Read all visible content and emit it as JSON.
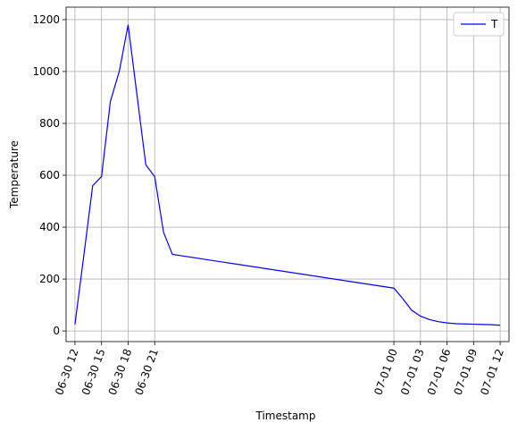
{
  "chart_data": {
    "type": "line",
    "x_label": "Timestamp",
    "y_label": "Temperature",
    "x": [
      "06-30 12",
      "06-30 13",
      "06-30 14",
      "06-30 15",
      "06-30 16",
      "06-30 17",
      "06-30 18",
      "06-30 19",
      "06-30 20",
      "06-30 21",
      "06-30 22",
      "06-30 23",
      "07-01 00",
      "07-01 01",
      "07-01 02",
      "07-01 03",
      "07-01 04",
      "07-01 05",
      "07-01 06",
      "07-01 07",
      "07-01 08",
      "07-01 09",
      "07-01 10",
      "07-01 11",
      "07-01 12"
    ],
    "series": [
      {
        "name": "T",
        "color": "#0000ff",
        "values": [
          25,
          290,
          560,
          595,
          885,
          1000,
          1180,
          910,
          640,
          595,
          380,
          295,
          165,
          125,
          80,
          57,
          44,
          36,
          31,
          28,
          27,
          26,
          25,
          24,
          22
        ]
      }
    ],
    "xlim": [
      "06-30 11",
      "07-01 13"
    ],
    "xticks": [
      "06-30 12",
      "06-30 15",
      "06-30 18",
      "06-30 21",
      "07-01 00",
      "07-01 03",
      "07-01 06",
      "07-01 09",
      "07-01 12"
    ],
    "ylim": [
      -41,
      1248
    ],
    "yticks": [
      0,
      200,
      400,
      600,
      800,
      1000,
      1200
    ],
    "grid": true,
    "legend": "upper right"
  }
}
